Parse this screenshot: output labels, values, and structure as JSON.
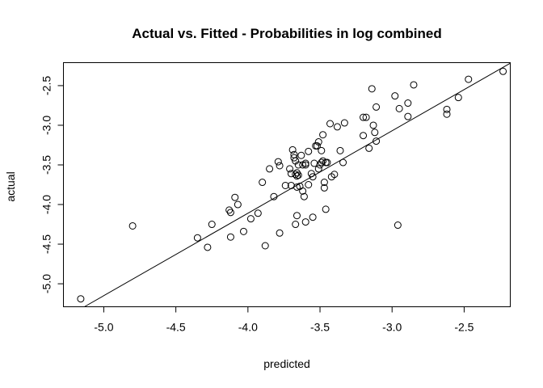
{
  "chart_data": {
    "type": "scatter",
    "title": "Actual vs. Fitted - Probabilities in log combined",
    "xlabel": "predicted",
    "ylabel": "actual",
    "xlim": [
      -5.28,
      -2.18
    ],
    "ylim": [
      -5.29,
      -2.21
    ],
    "xticks": [
      -5.0,
      -4.5,
      -4.0,
      -3.5,
      -3.0,
      -2.5
    ],
    "xtick_labels": [
      "-5.0",
      "-4.5",
      "-4.0",
      "-3.5",
      "-3.0",
      "-2.5"
    ],
    "yticks": [
      -5.0,
      -4.5,
      -4.0,
      -3.5,
      -3.0,
      -2.5
    ],
    "ytick_labels": [
      "-5.0",
      "-4.5",
      "-4.0",
      "-3.5",
      "-3.0",
      "-2.5"
    ],
    "fit_line": {
      "intercept": 0.05,
      "slope": 1.04
    },
    "grid": false,
    "legend": "none",
    "points": [
      [
        -5.16,
        -5.19
      ],
      [
        -4.8,
        -4.27
      ],
      [
        -4.35,
        -4.42
      ],
      [
        -4.28,
        -4.54
      ],
      [
        -4.25,
        -4.25
      ],
      [
        -4.13,
        -4.07
      ],
      [
        -4.12,
        -4.1
      ],
      [
        -4.12,
        -4.41
      ],
      [
        -4.09,
        -3.91
      ],
      [
        -4.07,
        -4.0
      ],
      [
        -4.03,
        -4.34
      ],
      [
        -3.98,
        -4.18
      ],
      [
        -3.93,
        -4.11
      ],
      [
        -3.9,
        -3.72
      ],
      [
        -3.88,
        -4.52
      ],
      [
        -3.85,
        -3.55
      ],
      [
        -3.82,
        -3.9
      ],
      [
        -3.79,
        -3.46
      ],
      [
        -3.78,
        -3.51
      ],
      [
        -3.78,
        -4.36
      ],
      [
        -3.74,
        -3.76
      ],
      [
        -3.71,
        -3.55
      ],
      [
        -3.7,
        -3.61
      ],
      [
        -3.7,
        -3.76
      ],
      [
        -3.69,
        -3.31
      ],
      [
        -3.68,
        -3.37
      ],
      [
        -3.68,
        -3.41
      ],
      [
        -3.67,
        -3.45
      ],
      [
        -3.67,
        -3.62
      ],
      [
        -3.67,
        -4.25
      ],
      [
        -3.66,
        -3.6
      ],
      [
        -3.66,
        -3.64
      ],
      [
        -3.66,
        -3.78
      ],
      [
        -3.66,
        -4.14
      ],
      [
        -3.65,
        -3.5
      ],
      [
        -3.65,
        -3.63
      ],
      [
        -3.64,
        -3.77
      ],
      [
        -3.63,
        -3.38
      ],
      [
        -3.62,
        -3.5
      ],
      [
        -3.62,
        -3.83
      ],
      [
        -3.61,
        -3.9
      ],
      [
        -3.6,
        -3.48
      ],
      [
        -3.6,
        -3.5
      ],
      [
        -3.6,
        -4.22
      ],
      [
        -3.58,
        -3.75
      ],
      [
        -3.58,
        -3.33
      ],
      [
        -3.56,
        -3.61
      ],
      [
        -3.55,
        -3.65
      ],
      [
        -3.55,
        -4.16
      ],
      [
        -3.54,
        -3.48
      ],
      [
        -3.53,
        -3.26
      ],
      [
        -3.52,
        -3.26
      ],
      [
        -3.51,
        -3.55
      ],
      [
        -3.51,
        -3.21
      ],
      [
        -3.5,
        -3.5
      ],
      [
        -3.49,
        -3.47
      ],
      [
        -3.49,
        -3.32
      ],
      [
        -3.48,
        -3.12
      ],
      [
        -3.48,
        -3.45
      ],
      [
        -3.47,
        -3.72
      ],
      [
        -3.47,
        -3.79
      ],
      [
        -3.46,
        -3.47
      ],
      [
        -3.46,
        -4.06
      ],
      [
        -3.45,
        -3.47
      ],
      [
        -3.43,
        -2.98
      ],
      [
        -3.42,
        -3.65
      ],
      [
        -3.4,
        -3.62
      ],
      [
        -3.38,
        -3.02
      ],
      [
        -3.36,
        -3.32
      ],
      [
        -3.34,
        -3.47
      ],
      [
        -3.33,
        -2.97
      ],
      [
        -3.2,
        -3.13
      ],
      [
        -3.2,
        -2.9
      ],
      [
        -3.18,
        -2.9
      ],
      [
        -3.16,
        -3.29
      ],
      [
        -3.14,
        -2.54
      ],
      [
        -3.13,
        -3.0
      ],
      [
        -3.12,
        -3.09
      ],
      [
        -3.11,
        -3.2
      ],
      [
        -3.11,
        -2.77
      ],
      [
        -2.98,
        -2.63
      ],
      [
        -2.96,
        -4.26
      ],
      [
        -2.95,
        -2.79
      ],
      [
        -2.89,
        -2.72
      ],
      [
        -2.89,
        -2.89
      ],
      [
        -2.85,
        -2.49
      ],
      [
        -2.62,
        -2.8
      ],
      [
        -2.62,
        -2.86
      ],
      [
        -2.54,
        -2.65
      ],
      [
        -2.47,
        -2.42
      ],
      [
        -2.23,
        -2.32
      ]
    ]
  }
}
